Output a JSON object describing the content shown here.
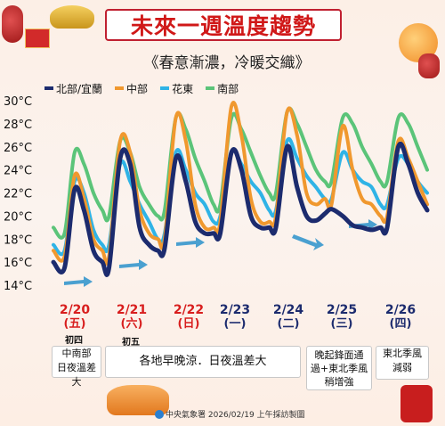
{
  "title": "未來一週溫度趨勢",
  "subtitle": "《春意漸濃，冷暖交織》",
  "colors": {
    "north": "#1c2b6e",
    "central": "#f0982e",
    "east": "#2fb3e6",
    "south": "#5bc479",
    "date_red": "#d81e1e",
    "date_navy": "#1c2b6e",
    "arrow": "#4aa0d0"
  },
  "chart_data": {
    "type": "line",
    "y_unit": "°C",
    "ylim": [
      13,
      31
    ],
    "yticks": [
      14,
      16,
      18,
      20,
      22,
      24,
      26,
      28,
      30
    ],
    "ytick_labels": [
      "14°C",
      "16°C",
      "18°C",
      "20°C",
      "22°C",
      "24°C",
      "26°C",
      "28°C",
      "30°C"
    ],
    "x_labels": [
      "2/20",
      "2/21",
      "2/22",
      "2/23",
      "2/24",
      "2/25",
      "2/26"
    ],
    "series": [
      {
        "name": "北部/宜蘭",
        "x": [
          0,
          0.2,
          0.38,
          0.55,
          0.72,
          0.88,
          1.0,
          1.2,
          1.38,
          1.55,
          1.72,
          1.88,
          2.0,
          2.2,
          2.38,
          2.55,
          2.72,
          2.88,
          3.0,
          3.2,
          3.38,
          3.55,
          3.72,
          3.88,
          4.0,
          4.2,
          4.38,
          4.55,
          4.72,
          4.88,
          5.0,
          5.2,
          5.38,
          5.55,
          5.72,
          5.88,
          6.0,
          6.2,
          6.38,
          6.55,
          6.72
        ],
        "values": [
          16.0,
          15.5,
          22.3,
          20.5,
          17.0,
          16.0,
          15.5,
          25.0,
          24.5,
          19.0,
          17.5,
          17.0,
          17.2,
          25.0,
          23.0,
          19.5,
          18.5,
          18.5,
          18.5,
          25.5,
          24.0,
          20.0,
          19.0,
          19.0,
          19.0,
          26.0,
          22.5,
          20.0,
          19.6,
          20.2,
          20.6,
          20.0,
          19.2,
          19.0,
          18.8,
          19.0,
          19.0,
          26.0,
          24.5,
          22.0,
          20.5
        ]
      },
      {
        "name": "中部",
        "x": [
          0,
          0.2,
          0.38,
          0.55,
          0.72,
          0.88,
          1.0,
          1.2,
          1.38,
          1.55,
          1.72,
          1.88,
          2.0,
          2.2,
          2.38,
          2.55,
          2.72,
          2.88,
          3.0,
          3.2,
          3.38,
          3.55,
          3.72,
          3.88,
          4.0,
          4.2,
          4.38,
          4.55,
          4.72,
          4.88,
          5.0,
          5.2,
          5.38,
          5.55,
          5.72,
          5.88,
          6.0,
          6.2,
          6.38,
          6.55,
          6.72
        ],
        "values": [
          17.0,
          16.5,
          23.5,
          21.5,
          18.0,
          17.0,
          16.5,
          26.5,
          25.5,
          20.5,
          18.5,
          18.0,
          18.0,
          28.5,
          26.5,
          21.0,
          19.0,
          19.0,
          19.5,
          29.5,
          27.0,
          21.5,
          19.5,
          19.5,
          20.0,
          29.0,
          27.0,
          22.0,
          21.0,
          21.5,
          21.0,
          27.8,
          24.0,
          21.5,
          21.0,
          20.0,
          20.0,
          26.5,
          25.0,
          23.0,
          21.0
        ]
      },
      {
        "name": "花東",
        "x": [
          0,
          0.2,
          0.38,
          0.55,
          0.72,
          0.88,
          1.0,
          1.2,
          1.38,
          1.55,
          1.72,
          1.88,
          2.0,
          2.2,
          2.38,
          2.55,
          2.72,
          2.88,
          3.0,
          3.2,
          3.38,
          3.55,
          3.72,
          3.88,
          4.0,
          4.2,
          4.38,
          4.55,
          4.72,
          4.88,
          5.0,
          5.2,
          5.38,
          5.55,
          5.72,
          5.88,
          6.0,
          6.2,
          6.38,
          6.55,
          6.72
        ],
        "values": [
          17.5,
          17.0,
          23.0,
          22.0,
          18.8,
          17.5,
          17.5,
          24.5,
          23.0,
          21.0,
          19.5,
          18.0,
          18.5,
          25.5,
          24.0,
          22.0,
          21.0,
          19.5,
          20.0,
          25.5,
          24.5,
          23.0,
          22.0,
          20.5,
          20.5,
          26.5,
          25.0,
          23.5,
          22.5,
          21.5,
          21.5,
          25.5,
          24.0,
          23.0,
          22.5,
          21.0,
          21.0,
          25.0,
          24.5,
          23.0,
          22.0
        ]
      },
      {
        "name": "南部",
        "x": [
          0,
          0.2,
          0.38,
          0.55,
          0.72,
          0.88,
          1.0,
          1.2,
          1.38,
          1.55,
          1.72,
          1.88,
          2.0,
          2.2,
          2.38,
          2.55,
          2.72,
          2.88,
          3.0,
          3.2,
          3.38,
          3.55,
          3.72,
          3.88,
          4.0,
          4.2,
          4.38,
          4.55,
          4.72,
          4.88,
          5.0,
          5.2,
          5.38,
          5.55,
          5.72,
          5.88,
          6.0,
          6.2,
          6.38,
          6.55,
          6.72
        ],
        "values": [
          19.0,
          18.5,
          25.5,
          24.5,
          22.0,
          20.5,
          20.0,
          26.5,
          25.5,
          22.5,
          21.0,
          20.0,
          20.5,
          28.5,
          27.5,
          25.0,
          23.0,
          21.0,
          21.0,
          28.5,
          27.5,
          25.5,
          23.5,
          22.0,
          22.0,
          29.0,
          28.0,
          26.0,
          24.0,
          23.0,
          23.0,
          28.5,
          28.0,
          26.0,
          24.5,
          23.0,
          23.0,
          28.5,
          28.0,
          26.0,
          24.0
        ]
      }
    ],
    "grid": false,
    "legend": "top-left"
  },
  "days": [
    {
      "date": "2/20",
      "weekday": "(五)",
      "lunar": "初四"
    },
    {
      "date": "2/21",
      "weekday": "(六)",
      "lunar": "初五"
    },
    {
      "date": "2/22",
      "weekday": "(日)",
      "lunar": ""
    },
    {
      "date": "2/23",
      "weekday": "(一)",
      "lunar": ""
    },
    {
      "date": "2/24",
      "weekday": "(二)",
      "lunar": ""
    },
    {
      "date": "2/25",
      "weekday": "(三)",
      "lunar": ""
    },
    {
      "date": "2/26",
      "weekday": "(四)",
      "lunar": ""
    }
  ],
  "notes": {
    "note1_line1": "中南部",
    "note1_line2": "日夜溫差大",
    "note2": "各地早晚涼．日夜溫差大",
    "note3_line1": "晚起鋒面通",
    "note3_line2": "過+東北季風",
    "note3_line3": "稍增強",
    "note4_line1": "東北季風",
    "note4_line2": "減弱"
  },
  "footer": {
    "source": "中央氣象署 2026/02/19 上午採訪製圖"
  }
}
